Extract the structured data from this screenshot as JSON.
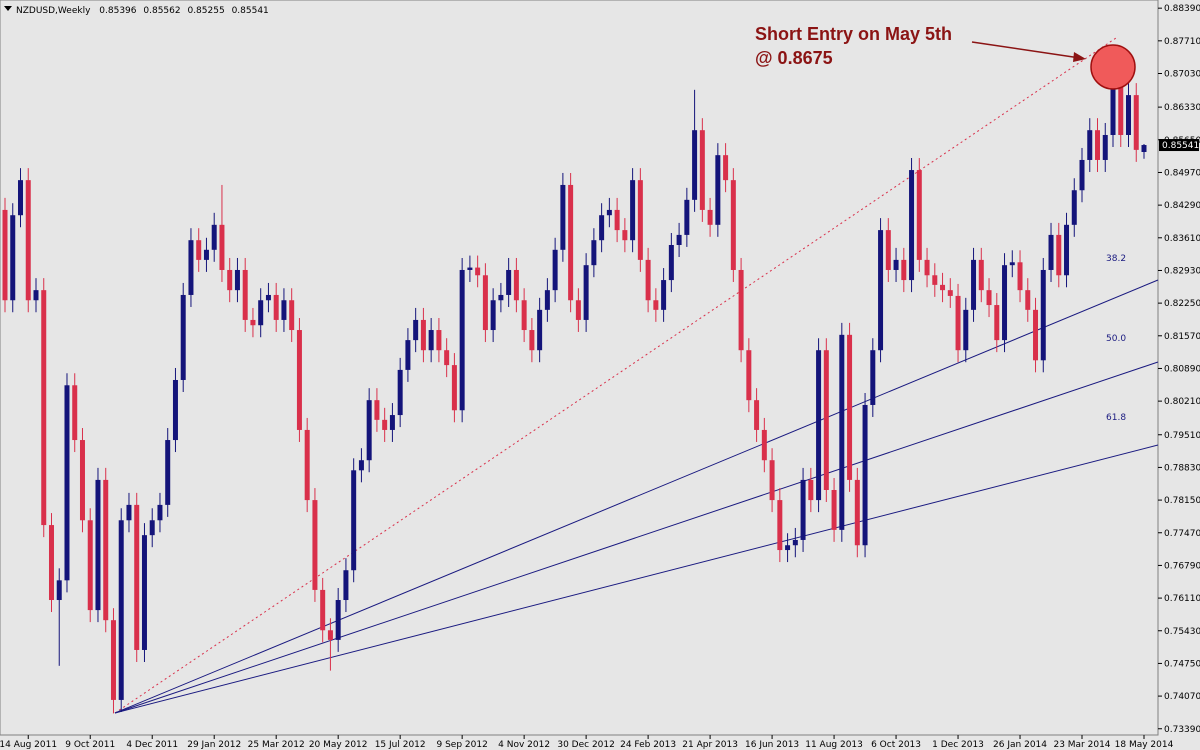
{
  "chart_data": {
    "type": "candlestick",
    "symbol": "NZDUSD,Weekly",
    "annotation": [
      "Short Entry on May 5th",
      "@ 0.8675"
    ],
    "fan_labels": [
      "38.2",
      "50.0",
      "61.8"
    ],
    "up_color": "#14147a",
    "down_color": "#d9304b",
    "ylim": [
      0.7326,
      0.8856
    ],
    "yticks": [
      {
        "value": 0.8839,
        "label": "0.88390"
      },
      {
        "value": 0.8771,
        "label": "0.87710"
      },
      {
        "value": 0.8703,
        "label": "0.87030"
      },
      {
        "value": 0.8633,
        "label": "0.86330"
      },
      {
        "value": 0.8565,
        "label": "0.85650"
      },
      {
        "value": 0.8497,
        "label": "0.84970"
      },
      {
        "value": 0.8429,
        "label": "0.84290"
      },
      {
        "value": 0.8361,
        "label": "0.83610"
      },
      {
        "value": 0.8293,
        "label": "0.82930"
      },
      {
        "value": 0.8225,
        "label": "0.82250"
      },
      {
        "value": 0.8157,
        "label": "0.81570"
      },
      {
        "value": 0.8089,
        "label": "0.80890"
      },
      {
        "value": 0.8021,
        "label": "0.80210"
      },
      {
        "value": 0.7951,
        "label": "0.79510"
      },
      {
        "value": 0.7883,
        "label": "0.78830"
      },
      {
        "value": 0.7815,
        "label": "0.78150"
      },
      {
        "value": 0.7747,
        "label": "0.77470"
      },
      {
        "value": 0.7679,
        "label": "0.76790"
      },
      {
        "value": 0.7611,
        "label": "0.76110"
      },
      {
        "value": 0.7543,
        "label": "0.75430"
      },
      {
        "value": 0.7475,
        "label": "0.74750"
      },
      {
        "value": 0.7407,
        "label": "0.74070"
      },
      {
        "value": 0.7339,
        "label": "0.73390"
      }
    ],
    "categories": [
      null,
      null,
      null,
      "14 Aug 2011",
      null,
      null,
      null,
      null,
      null,
      null,
      null,
      "9 Oct 2011",
      null,
      null,
      null,
      null,
      null,
      null,
      null,
      "4 Dec 2011",
      null,
      null,
      null,
      null,
      null,
      null,
      null,
      "29 Jan 2012",
      null,
      null,
      null,
      null,
      null,
      null,
      null,
      "25 Mar 2012",
      null,
      null,
      null,
      null,
      null,
      null,
      null,
      "20 May 2012",
      null,
      null,
      null,
      null,
      null,
      null,
      null,
      "15 Jul 2012",
      null,
      null,
      null,
      null,
      null,
      null,
      null,
      "9 Sep 2012",
      null,
      null,
      null,
      null,
      null,
      null,
      null,
      "4 Nov 2012",
      null,
      null,
      null,
      null,
      null,
      null,
      null,
      "30 Dec 2012",
      null,
      null,
      null,
      null,
      null,
      null,
      null,
      "24 Feb 2013",
      null,
      null,
      null,
      null,
      null,
      null,
      null,
      "21 Apr 2013",
      null,
      null,
      null,
      null,
      null,
      null,
      null,
      "16 Jun 2013",
      null,
      null,
      null,
      null,
      null,
      null,
      null,
      "11 Aug 2013",
      null,
      null,
      null,
      null,
      null,
      null,
      null,
      "6 Oct 2013",
      null,
      null,
      null,
      null,
      null,
      null,
      null,
      "1 Dec 2013",
      null,
      null,
      null,
      null,
      null,
      null,
      null,
      "26 Jan 2014",
      null,
      null,
      null,
      null,
      null,
      null,
      null,
      "23 Mar 2014",
      null,
      null,
      null,
      null,
      null,
      null,
      null,
      "18 May 2014"
    ],
    "open": [
      0.8419,
      0.8231,
      0.8408,
      0.8481,
      0.8231,
      0.8252,
      0.7763,
      0.7607,
      0.7648,
      0.8054,
      0.794,
      0.7773,
      0.7586,
      0.7857,
      0.7565,
      0.7399,
      0.7773,
      0.7805,
      0.7503,
      0.7742,
      0.7773,
      0.7805,
      0.794,
      0.8065,
      0.8242,
      0.8356,
      0.8315,
      0.8336,
      0.8388,
      0.8294,
      0.8252,
      0.8294,
      0.819,
      0.8179,
      0.8231,
      0.8242,
      0.819,
      0.8231,
      0.8169,
      0.7961,
      0.7815,
      0.7628,
      0.7544,
      0.7524,
      0.7607,
      0.7669,
      0.7877,
      0.7898,
      0.8023,
      0.7982,
      0.7961,
      0.7992,
      0.8086,
      0.8148,
      0.819,
      0.8127,
      0.8169,
      0.8127,
      0.8096,
      0.8002,
      0.8294,
      0.8299,
      0.8283,
      0.8169,
      0.8231,
      0.8242,
      0.8294,
      0.8231,
      0.8169,
      0.8127,
      0.8211,
      0.8252,
      0.8336,
      0.8471,
      0.8231,
      0.819,
      0.8304,
      0.8356,
      0.8408,
      0.8419,
      0.8377,
      0.8356,
      0.8481,
      0.8315,
      0.8231,
      0.8211,
      0.8273,
      0.8346,
      0.8367,
      0.844,
      0.8585,
      0.8419,
      0.8388,
      0.8533,
      0.8481,
      0.8294,
      0.8127,
      0.8023,
      0.7961,
      0.7898,
      0.7815,
      0.7711,
      0.7721,
      0.7732,
      0.7857,
      0.7815,
      0.8127,
      0.7836,
      0.7753,
      0.8159,
      0.7857,
      0.7721,
      0.8013,
      0.8127,
      0.8377,
      0.8294,
      0.8315,
      0.8273,
      0.8502,
      0.8315,
      0.8283,
      0.8263,
      0.8252,
      0.824,
      0.8127,
      0.8211,
      0.8315,
      0.8252,
      0.8221,
      0.8148,
      0.8304,
      0.831,
      0.8252,
      0.8211,
      0.8106,
      0.8294,
      0.8367,
      0.8283,
      0.8388,
      0.846,
      0.8523,
      0.8585,
      0.8523,
      0.8575,
      0.8689,
      0.8575,
      0.8658,
      0.85396
    ],
    "high": [
      0.8444,
      0.8433,
      0.8506,
      0.8506,
      0.8277,
      0.8277,
      0.7788,
      0.7673,
      0.8079,
      0.8079,
      0.7965,
      0.7798,
      0.7882,
      0.7882,
      0.759,
      0.7798,
      0.783,
      0.783,
      0.7767,
      0.7798,
      0.783,
      0.7965,
      0.809,
      0.8267,
      0.8381,
      0.8381,
      0.8361,
      0.8413,
      0.8471,
      0.8319,
      0.8319,
      0.8319,
      0.8215,
      0.8256,
      0.8267,
      0.8267,
      0.8256,
      0.8256,
      0.8194,
      0.7986,
      0.784,
      0.7653,
      0.7569,
      0.7632,
      0.7694,
      0.7902,
      0.7923,
      0.8048,
      0.8048,
      0.8007,
      0.8017,
      0.8111,
      0.8173,
      0.8215,
      0.8215,
      0.8194,
      0.8194,
      0.8152,
      0.8121,
      0.8319,
      0.8324,
      0.8324,
      0.8308,
      0.8256,
      0.8267,
      0.8319,
      0.8319,
      0.8256,
      0.8194,
      0.8236,
      0.8277,
      0.8361,
      0.8496,
      0.8496,
      0.8256,
      0.8329,
      0.8381,
      0.8433,
      0.8444,
      0.8444,
      0.8402,
      0.8506,
      0.8506,
      0.834,
      0.8256,
      0.8298,
      0.8371,
      0.8392,
      0.8465,
      0.8669,
      0.861,
      0.8444,
      0.8558,
      0.8558,
      0.8506,
      0.8319,
      0.8152,
      0.8048,
      0.7986,
      0.7923,
      0.784,
      0.7746,
      0.7757,
      0.7882,
      0.7882,
      0.8152,
      0.8152,
      0.7861,
      0.8184,
      0.8184,
      0.7882,
      0.8038,
      0.8152,
      0.8402,
      0.8402,
      0.834,
      0.834,
      0.8527,
      0.8527,
      0.834,
      0.8308,
      0.8288,
      0.8277,
      0.8265,
      0.8236,
      0.834,
      0.834,
      0.8277,
      0.8246,
      0.8329,
      0.8335,
      0.8335,
      0.8277,
      0.8236,
      0.8319,
      0.8392,
      0.8392,
      0.8413,
      0.8485,
      0.8548,
      0.861,
      0.861,
      0.86,
      0.8735,
      0.8714,
      0.8683,
      0.8683,
      0.85562
    ],
    "low": [
      0.8206,
      0.8206,
      0.8383,
      0.8206,
      0.8206,
      0.7738,
      0.7582,
      0.747,
      0.7623,
      0.7915,
      0.7748,
      0.7561,
      0.7561,
      0.754,
      0.7371,
      0.7374,
      0.7748,
      0.7478,
      0.7478,
      0.7717,
      0.7748,
      0.778,
      0.7915,
      0.804,
      0.8217,
      0.829,
      0.829,
      0.8311,
      0.8269,
      0.8227,
      0.8227,
      0.8165,
      0.8154,
      0.8154,
      0.8206,
      0.8165,
      0.8165,
      0.8144,
      0.7936,
      0.779,
      0.7603,
      0.7519,
      0.746,
      0.7499,
      0.7582,
      0.7644,
      0.7852,
      0.7873,
      0.7957,
      0.7936,
      0.7936,
      0.7967,
      0.8061,
      0.8123,
      0.8102,
      0.8102,
      0.8102,
      0.8071,
      0.7977,
      0.7977,
      0.8269,
      0.8258,
      0.8144,
      0.8144,
      0.8206,
      0.8217,
      0.8206,
      0.8144,
      0.8102,
      0.8102,
      0.8186,
      0.8227,
      0.8311,
      0.8206,
      0.8165,
      0.8165,
      0.8279,
      0.8331,
      0.8383,
      0.8352,
      0.8331,
      0.8331,
      0.829,
      0.8206,
      0.8186,
      0.8186,
      0.8248,
      0.8321,
      0.8342,
      0.8415,
      0.8394,
      0.8363,
      0.8363,
      0.8456,
      0.8269,
      0.8102,
      0.7998,
      0.7936,
      0.7873,
      0.779,
      0.7686,
      0.7686,
      0.7696,
      0.7707,
      0.779,
      0.779,
      0.7811,
      0.7728,
      0.7728,
      0.7832,
      0.7696,
      0.7696,
      0.7988,
      0.8102,
      0.8269,
      0.8269,
      0.8248,
      0.8248,
      0.829,
      0.8258,
      0.8238,
      0.8227,
      0.8215,
      0.8102,
      0.8102,
      0.8186,
      0.8227,
      0.8196,
      0.8123,
      0.8123,
      0.8279,
      0.8227,
      0.8186,
      0.8081,
      0.8081,
      0.8269,
      0.8258,
      0.8258,
      0.8363,
      0.8435,
      0.8498,
      0.8498,
      0.8498,
      0.855,
      0.855,
      0.855,
      0.8519,
      0.85255
    ],
    "close": [
      0.8231,
      0.8408,
      0.8481,
      0.8231,
      0.8252,
      0.7763,
      0.7607,
      0.7648,
      0.8054,
      0.794,
      0.7773,
      0.7586,
      0.7857,
      0.7565,
      0.7399,
      0.7773,
      0.7805,
      0.7503,
      0.7742,
      0.7773,
      0.7805,
      0.794,
      0.8065,
      0.8242,
      0.8356,
      0.8315,
      0.8336,
      0.8388,
      0.8294,
      0.8252,
      0.8294,
      0.819,
      0.8179,
      0.8231,
      0.8242,
      0.819,
      0.8231,
      0.8169,
      0.7961,
      0.7815,
      0.7628,
      0.7544,
      0.7524,
      0.7607,
      0.7669,
      0.7877,
      0.7898,
      0.8023,
      0.7982,
      0.7961,
      0.7992,
      0.8086,
      0.8148,
      0.819,
      0.8127,
      0.8169,
      0.8127,
      0.8096,
      0.8002,
      0.8294,
      0.8299,
      0.8283,
      0.8169,
      0.8231,
      0.8242,
      0.8294,
      0.8231,
      0.8169,
      0.8127,
      0.8211,
      0.8252,
      0.8336,
      0.8471,
      0.8231,
      0.819,
      0.8304,
      0.8356,
      0.8408,
      0.8419,
      0.8377,
      0.8356,
      0.8481,
      0.8315,
      0.8231,
      0.8211,
      0.8273,
      0.8346,
      0.8367,
      0.844,
      0.8585,
      0.8419,
      0.8388,
      0.8533,
      0.8481,
      0.8294,
      0.8127,
      0.8023,
      0.7961,
      0.7898,
      0.7815,
      0.7711,
      0.7721,
      0.7732,
      0.7857,
      0.7815,
      0.8127,
      0.7836,
      0.7753,
      0.8159,
      0.7857,
      0.7721,
      0.8013,
      0.8127,
      0.8377,
      0.8294,
      0.8315,
      0.8273,
      0.8502,
      0.8315,
      0.8283,
      0.8263,
      0.8252,
      0.824,
      0.8127,
      0.8211,
      0.8315,
      0.8252,
      0.8221,
      0.8148,
      0.8304,
      0.831,
      0.8252,
      0.8211,
      0.8106,
      0.8294,
      0.8367,
      0.8283,
      0.8388,
      0.846,
      0.8523,
      0.8585,
      0.8523,
      0.8575,
      0.8689,
      0.8575,
      0.8658,
      0.8544,
      0.85541
    ]
  }
}
